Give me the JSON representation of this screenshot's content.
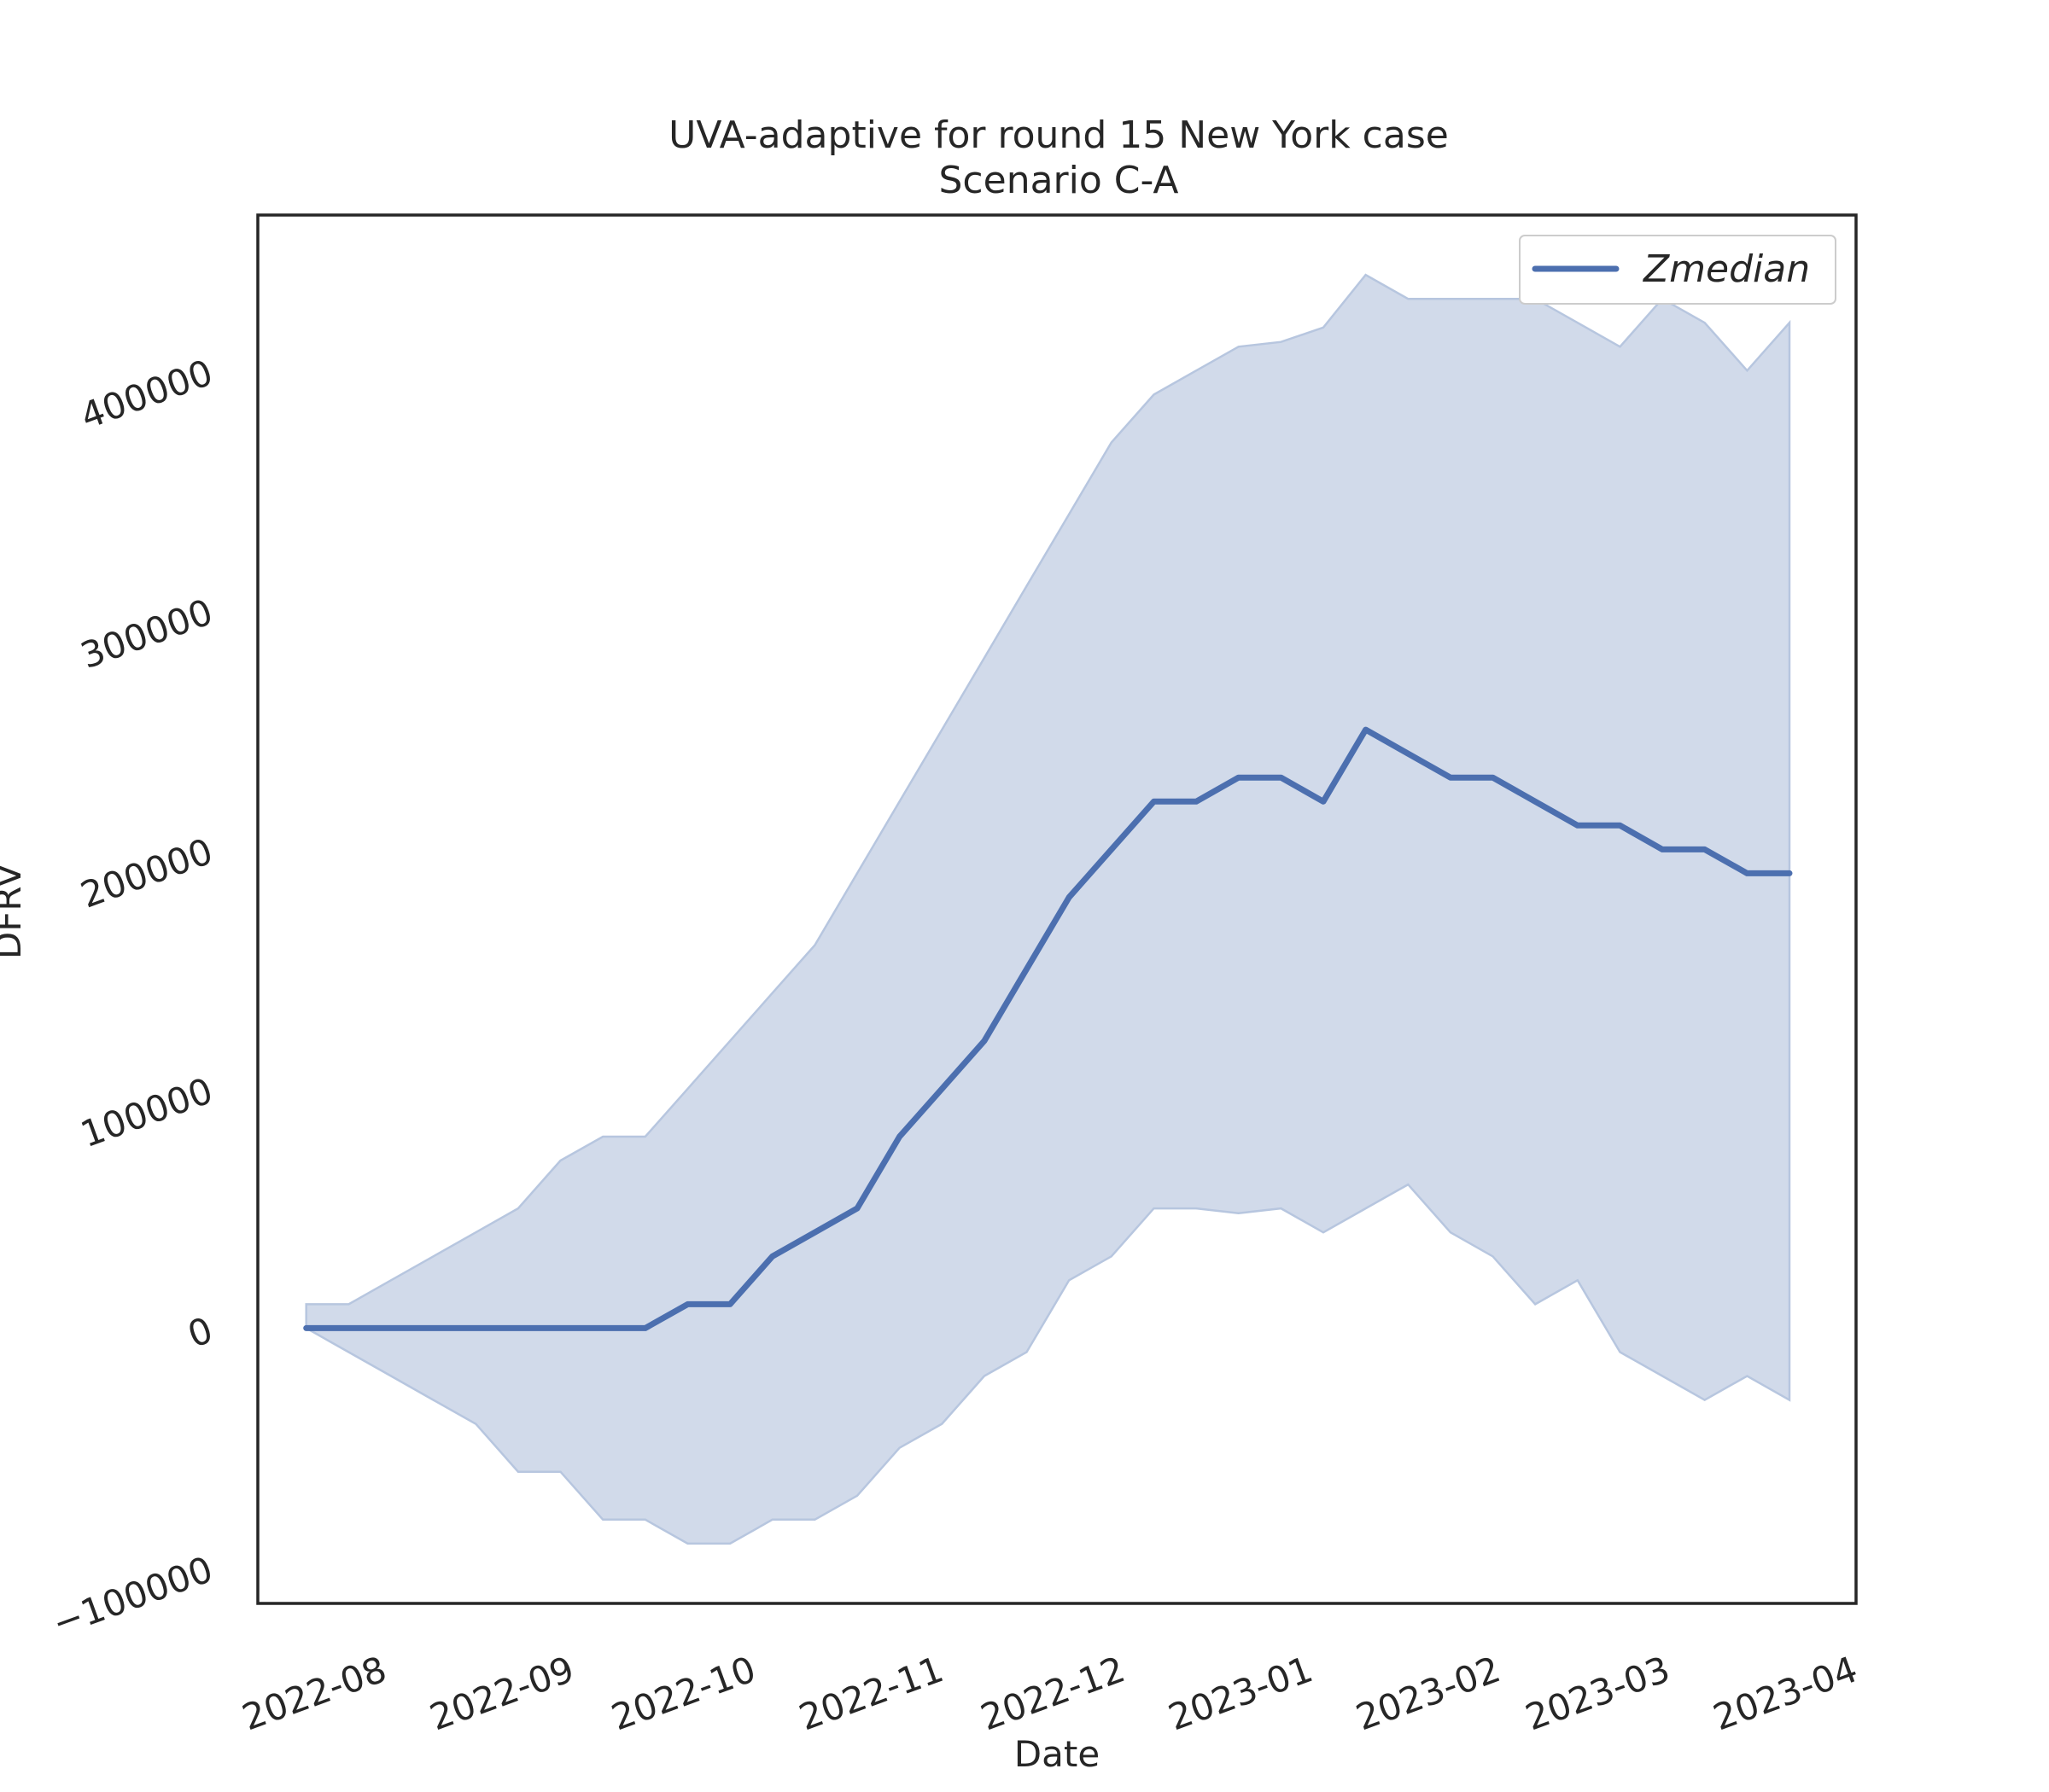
{
  "chart_data": {
    "type": "line",
    "title": "UVA-adaptive for round 15 New York case",
    "subtitle": "Scenario C-A",
    "xlabel": "Date",
    "ylabel": "DFRV",
    "x_ticks": [
      "2022-08",
      "2022-09",
      "2022-10",
      "2022-11",
      "2022-12",
      "2023-01",
      "2023-02",
      "2023-03",
      "2023-04"
    ],
    "y_ticks": [
      -100000,
      0,
      100000,
      200000,
      300000,
      400000
    ],
    "y_tick_labels": [
      "−100000",
      "0",
      "100000",
      "200000",
      "300000",
      "400000"
    ],
    "xlim": [
      "2022-07-16",
      "2023-04-06"
    ],
    "ylim": [
      -115000,
      465000
    ],
    "grid": false,
    "legend_position": "top-right",
    "band_color": "#d1daea",
    "band_edge_color": "#b7c6df",
    "line_color": "#4c6faf",
    "series": [
      {
        "name": "Zmedian",
        "x": [
          "2022-07-24",
          "2022-07-31",
          "2022-08-07",
          "2022-08-14",
          "2022-08-21",
          "2022-08-28",
          "2022-09-04",
          "2022-09-11",
          "2022-09-18",
          "2022-09-25",
          "2022-10-02",
          "2022-10-09",
          "2022-10-16",
          "2022-10-23",
          "2022-10-30",
          "2022-11-06",
          "2022-11-13",
          "2022-11-20",
          "2022-11-27",
          "2022-12-04",
          "2022-12-11",
          "2022-12-18",
          "2022-12-25",
          "2023-01-01",
          "2023-01-08",
          "2023-01-15",
          "2023-01-22",
          "2023-01-29",
          "2023-02-05",
          "2023-02-12",
          "2023-02-19",
          "2023-02-26",
          "2023-03-05",
          "2023-03-12",
          "2023-03-19",
          "2023-03-26"
        ],
        "median": [
          0,
          0,
          0,
          0,
          0,
          0,
          0,
          0,
          0,
          10000,
          10000,
          30000,
          40000,
          50000,
          80000,
          100000,
          120000,
          150000,
          180000,
          200000,
          220000,
          220000,
          230000,
          230000,
          220000,
          250000,
          240000,
          230000,
          230000,
          220000,
          210000,
          210000,
          200000,
          200000,
          190000,
          190000
        ],
        "lower": [
          0,
          -10000,
          -20000,
          -30000,
          -40000,
          -60000,
          -60000,
          -80000,
          -80000,
          -90000,
          -90000,
          -80000,
          -80000,
          -70000,
          -50000,
          -40000,
          -20000,
          -10000,
          20000,
          30000,
          50000,
          50000,
          48000,
          50000,
          40000,
          50000,
          60000,
          40000,
          30000,
          10000,
          20000,
          -10000,
          -20000,
          -30000,
          -20000,
          -30000
        ],
        "upper": [
          10000,
          10000,
          20000,
          30000,
          40000,
          50000,
          70000,
          80000,
          80000,
          100000,
          120000,
          140000,
          160000,
          190000,
          220000,
          250000,
          280000,
          310000,
          340000,
          370000,
          390000,
          400000,
          410000,
          412000,
          418000,
          440000,
          430000,
          430000,
          430000,
          430000,
          420000,
          410000,
          430000,
          420000,
          400000,
          420000
        ]
      }
    ]
  }
}
